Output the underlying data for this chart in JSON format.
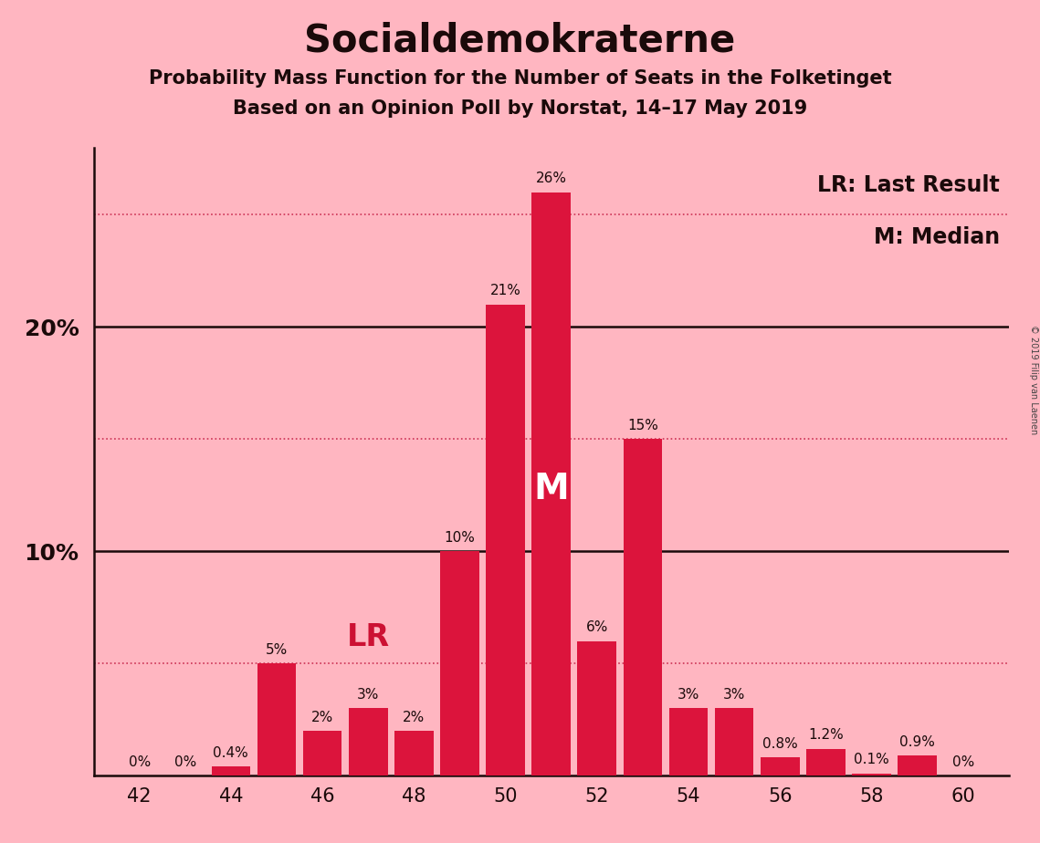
{
  "title": "Socialdemokraterne",
  "subtitle1": "Probability Mass Function for the Number of Seats in the Folketinget",
  "subtitle2": "Based on an Opinion Poll by Norstat, 14–17 May 2019",
  "copyright": "© 2019 Filip van Laenen",
  "seats": [
    42,
    43,
    44,
    45,
    46,
    47,
    48,
    49,
    50,
    51,
    52,
    53,
    54,
    55,
    56,
    57,
    58,
    59,
    60
  ],
  "probabilities": [
    0.0,
    0.0,
    0.4,
    5.0,
    2.0,
    3.0,
    2.0,
    10.0,
    21.0,
    26.0,
    6.0,
    15.0,
    3.0,
    3.0,
    0.8,
    1.2,
    0.1,
    0.9,
    0.0
  ],
  "bar_color": "#DC143C",
  "background_color": "#FFB6C1",
  "text_color": "#1a0a0a",
  "median_seat": 51,
  "lr_seat": 47,
  "ylim_max": 28,
  "dotted_grid_levels": [
    5,
    15,
    25
  ],
  "solid_grid_levels": [
    10,
    20
  ],
  "legend_lr": "LR: Last Result",
  "legend_m": "M: Median",
  "label_fontsize": 11,
  "ytick_fontsize": 18,
  "xtick_fontsize": 15,
  "title_fontsize": 30,
  "subtitle_fontsize": 15,
  "legend_fontsize": 17
}
